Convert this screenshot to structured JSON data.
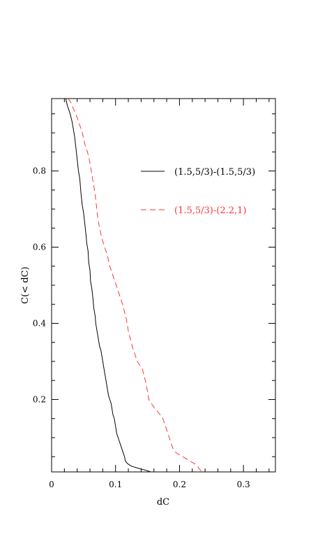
{
  "chart_data": {
    "type": "line",
    "title": "",
    "xlabel": "dC",
    "ylabel": "C(< dC)",
    "xlim": [
      0,
      0.35
    ],
    "ylim": [
      0.01,
      0.99
    ],
    "x_ticks": [
      {
        "value": 0,
        "label": "0"
      },
      {
        "value": 0.1,
        "label": "0.1"
      },
      {
        "value": 0.2,
        "label": "0.2"
      },
      {
        "value": 0.3,
        "label": "0.3"
      }
    ],
    "y_ticks": [
      {
        "value": 0.2,
        "label": "0.2"
      },
      {
        "value": 0.4,
        "label": "0.4"
      },
      {
        "value": 0.6,
        "label": "0.6"
      },
      {
        "value": 0.8,
        "label": "0.8"
      }
    ],
    "grid": false,
    "legend_position": "top-right",
    "series": [
      {
        "name": "(1.5,5/3)-(1.5,5/3)",
        "color": "#000000",
        "dash": "solid",
        "x": [
          0.022,
          0.025,
          0.029,
          0.032,
          0.034,
          0.036,
          0.038,
          0.04,
          0.042,
          0.044,
          0.045,
          0.046,
          0.048,
          0.05,
          0.052,
          0.054,
          0.055,
          0.057,
          0.058,
          0.06,
          0.061,
          0.063,
          0.065,
          0.066,
          0.068,
          0.069,
          0.071,
          0.073,
          0.075,
          0.077,
          0.079,
          0.081,
          0.083,
          0.085,
          0.087,
          0.089,
          0.091,
          0.093,
          0.095,
          0.096,
          0.098,
          0.1,
          0.102,
          0.104,
          0.106,
          0.108,
          0.11,
          0.112,
          0.114,
          0.115,
          0.117,
          0.12,
          0.125,
          0.135,
          0.146,
          0.155
        ],
        "y": [
          0.99,
          0.97,
          0.95,
          0.93,
          0.91,
          0.89,
          0.86,
          0.83,
          0.8,
          0.78,
          0.76,
          0.74,
          0.71,
          0.69,
          0.66,
          0.63,
          0.61,
          0.59,
          0.56,
          0.54,
          0.51,
          0.49,
          0.46,
          0.44,
          0.42,
          0.4,
          0.38,
          0.36,
          0.34,
          0.33,
          0.31,
          0.29,
          0.27,
          0.25,
          0.23,
          0.21,
          0.2,
          0.19,
          0.17,
          0.16,
          0.15,
          0.13,
          0.11,
          0.1,
          0.09,
          0.08,
          0.07,
          0.06,
          0.05,
          0.04,
          0.035,
          0.03,
          0.025,
          0.02,
          0.015,
          0.01
        ]
      },
      {
        "name": "(1.5,5/3)-(2.2,1)",
        "color": "#ff3333",
        "dash": "dashed",
        "x": [
          0.026,
          0.03,
          0.035,
          0.04,
          0.044,
          0.048,
          0.052,
          0.056,
          0.059,
          0.062,
          0.065,
          0.068,
          0.07,
          0.072,
          0.075,
          0.079,
          0.083,
          0.087,
          0.091,
          0.095,
          0.099,
          0.103,
          0.107,
          0.111,
          0.114,
          0.117,
          0.12,
          0.123,
          0.126,
          0.13,
          0.134,
          0.138,
          0.142,
          0.145,
          0.148,
          0.15,
          0.152,
          0.156,
          0.16,
          0.165,
          0.17,
          0.174,
          0.178,
          0.182,
          0.186,
          0.19,
          0.195,
          0.205,
          0.215,
          0.225,
          0.23,
          0.235
        ],
        "y": [
          0.99,
          0.98,
          0.96,
          0.94,
          0.92,
          0.9,
          0.87,
          0.85,
          0.83,
          0.8,
          0.77,
          0.74,
          0.71,
          0.68,
          0.65,
          0.62,
          0.6,
          0.58,
          0.55,
          0.53,
          0.51,
          0.49,
          0.47,
          0.45,
          0.43,
          0.41,
          0.38,
          0.36,
          0.34,
          0.32,
          0.3,
          0.29,
          0.28,
          0.26,
          0.24,
          0.22,
          0.2,
          0.19,
          0.18,
          0.17,
          0.16,
          0.15,
          0.13,
          0.11,
          0.09,
          0.07,
          0.06,
          0.05,
          0.04,
          0.03,
          0.02,
          0.01
        ]
      }
    ]
  }
}
